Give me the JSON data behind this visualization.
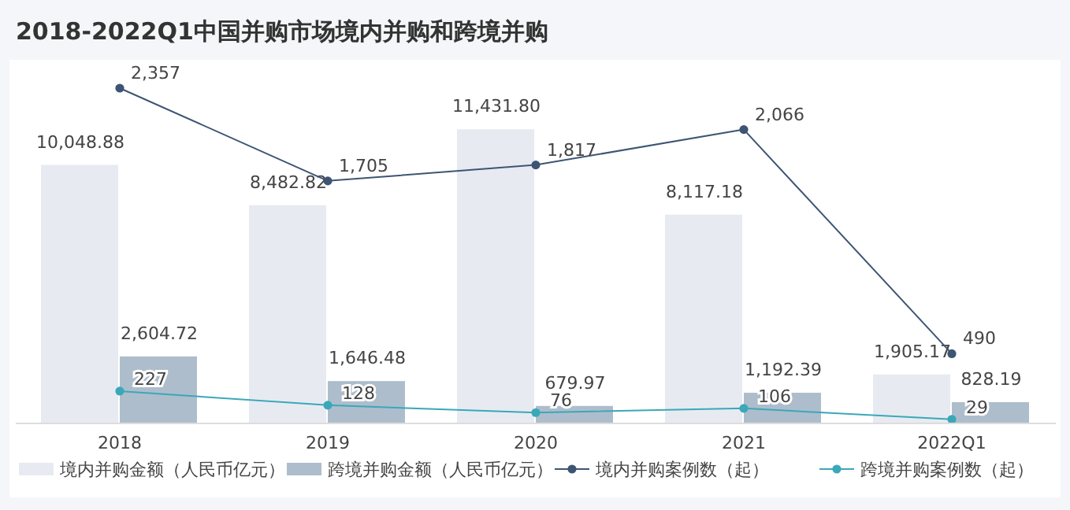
{
  "chart_data": {
    "type": "bar",
    "title": "2018-2022Q1中国并购市场境内并购和跨境并购",
    "categories": [
      "2018",
      "2019",
      "2020",
      "2021",
      "2022Q1"
    ],
    "series": [
      {
        "name": "境内并购金额（人民币亿元）",
        "color": "#e8eaf2",
        "values": [
          10048.88,
          8482.82,
          11431.8,
          8117.18,
          1905.17
        ],
        "value_labels": [
          "10,048.88",
          "8,482.82",
          "11,431.80",
          "8,117.18",
          "1,905.17"
        ]
      },
      {
        "name": "跨境并购金额（人民币亿元）",
        "color": "#aebdcc",
        "values": [
          2604.72,
          1646.48,
          679.97,
          1192.39,
          828.19
        ],
        "value_labels": [
          "2,604.72",
          "1,646.48",
          "679.97",
          "1,192.39",
          "828.19"
        ]
      },
      {
        "name": "境内并购案例数（起）",
        "type": "line",
        "axis": "y2",
        "color": "#3d5573",
        "values": [
          2357,
          1705,
          1817,
          2066,
          490
        ],
        "value_labels": [
          "2,357",
          "1,705",
          "1,817",
          "2,066",
          "490"
        ]
      },
      {
        "name": "跨境并购案例数（起）",
        "type": "line",
        "axis": "y2",
        "color": "#3aa8b8",
        "values": [
          227,
          128,
          76,
          106,
          29
        ],
        "value_labels": [
          "227",
          "128",
          "76",
          "106",
          "29"
        ]
      }
    ],
    "marker": "circle",
    "legend": "bottom"
  }
}
